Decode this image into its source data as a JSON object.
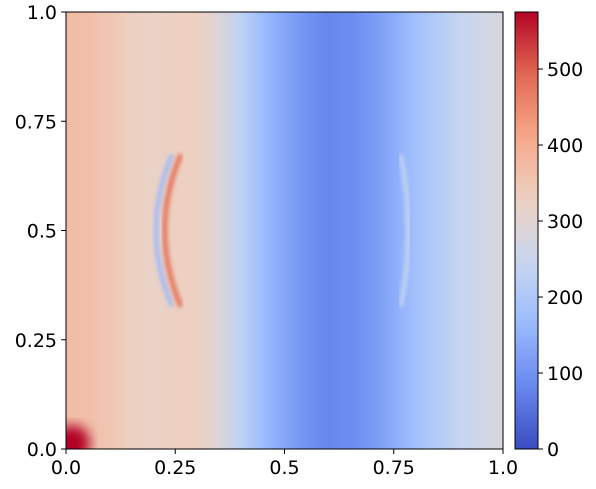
{
  "chart_data": {
    "type": "heatmap",
    "title": "",
    "xlabel": "",
    "ylabel": "",
    "xlim": [
      0.0,
      1.0
    ],
    "ylim": [
      0.0,
      1.0
    ],
    "x_ticks": [
      "0.0",
      "0.25",
      "0.5",
      "0.75",
      "1.0"
    ],
    "y_ticks": [
      "0.0",
      "0.25",
      "0.5",
      "0.75",
      "1.0"
    ],
    "x_tick_values": [
      0.0,
      0.25,
      0.5,
      0.75,
      1.0
    ],
    "y_tick_values": [
      0.0,
      0.25,
      0.5,
      0.75,
      1.0
    ],
    "colormap": "coolwarm",
    "colorbar": {
      "range": [
        0,
        575
      ],
      "ticks": [
        "0",
        "100",
        "200",
        "300",
        "400",
        "500"
      ],
      "tick_values": [
        0,
        100,
        200,
        300,
        400,
        500
      ],
      "colors": [
        "#3b4cc0",
        "#6788ee",
        "#9abbff",
        "#c9d7f0",
        "#edd1c2",
        "#f7a889",
        "#e26952",
        "#b40426"
      ]
    },
    "grid": false,
    "column_profile": {
      "x": [
        0.0,
        0.05,
        0.1,
        0.15,
        0.2,
        0.25,
        0.3,
        0.35,
        0.4,
        0.45,
        0.5,
        0.55,
        0.6,
        0.65,
        0.7,
        0.75,
        0.8,
        0.85,
        0.9,
        0.95,
        1.0
      ],
      "values": [
        370,
        365,
        350,
        330,
        320,
        330,
        330,
        290,
        230,
        170,
        130,
        100,
        80,
        90,
        110,
        140,
        180,
        210,
        240,
        260,
        280
      ]
    },
    "features": [
      {
        "kind": "arc",
        "x": 0.22,
        "y": 0.5,
        "value": 480
      },
      {
        "kind": "arc",
        "x": 0.2,
        "y": 0.5,
        "value": 160
      },
      {
        "kind": "arc",
        "x": 0.78,
        "y": 0.5,
        "value": 250
      },
      {
        "kind": "hotspot",
        "x": 0.0,
        "y": 0.0,
        "value": 575
      }
    ]
  }
}
